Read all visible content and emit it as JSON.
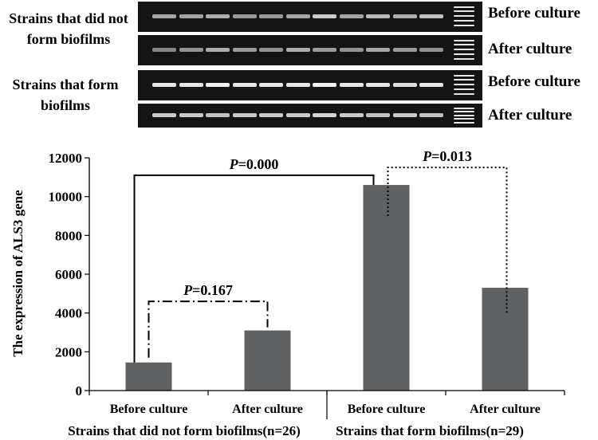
{
  "gel_panel": {
    "group_labels": [
      "Strains that did not form biofilms",
      "Strains that form biofilms"
    ],
    "row_labels": [
      "Before culture",
      "After culture",
      "Before culture",
      "After culture"
    ],
    "lanes_per_row": 11,
    "band_intensity": [
      [
        0.55,
        0.55,
        0.6,
        0.5,
        0.5,
        0.55,
        0.75,
        0.55,
        0.65,
        0.6,
        0.7
      ],
      [
        0.4,
        0.45,
        0.6,
        0.5,
        0.45,
        0.6,
        0.5,
        0.45,
        0.55,
        0.5,
        0.45
      ],
      [
        0.9,
        0.9,
        0.95,
        0.9,
        0.9,
        0.9,
        0.95,
        0.9,
        0.9,
        0.85,
        0.9
      ],
      [
        0.75,
        0.75,
        0.7,
        0.75,
        0.75,
        0.75,
        0.8,
        0.75,
        0.7,
        0.75,
        0.7
      ]
    ]
  },
  "chart_data": {
    "type": "bar",
    "categories": [
      "Before culture",
      "After culture",
      "Before culture",
      "After culture"
    ],
    "values": [
      1450,
      3100,
      10600,
      5300
    ],
    "group_labels": [
      "Strains that did not form biofilms(n=26)",
      "Strains that form biofilms(n=29)"
    ],
    "ylabel": "The expression of ALS3 gene",
    "xlabel": "",
    "ylim": [
      0,
      12000
    ],
    "yticks": [
      0,
      2000,
      4000,
      6000,
      8000,
      10000,
      12000
    ],
    "bar_color": "#5f6163",
    "annotations": [
      {
        "p_italic": "P",
        "value_text": "=0.167",
        "between": [
          0,
          1
        ],
        "style": "dash-dot"
      },
      {
        "p_italic": "P",
        "value_text": "=0.000",
        "between": [
          0,
          2
        ],
        "style": "solid"
      },
      {
        "p_italic": "P",
        "value_text": "=0.013",
        "between": [
          2,
          3
        ],
        "style": "dotted"
      }
    ],
    "grid": false
  }
}
